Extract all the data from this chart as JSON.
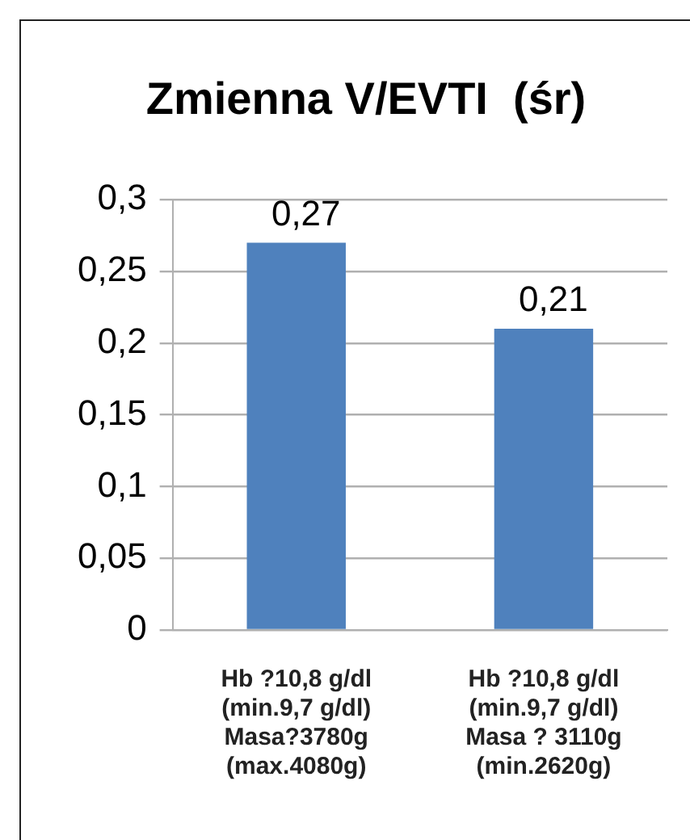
{
  "chart_data": {
    "type": "bar",
    "title": "Zmienna V/EVTI  (śr)",
    "categories": [
      "Hb ?10,8 g/dl\n(min.9,7 g/dl)\nMasa?3780g\n(max.4080g)",
      "Hb ?10,8 g/dl\n(min.9,7 g/dl)\nMasa ? 3110g\n(min.2620g)"
    ],
    "values": [
      0.27,
      0.21
    ],
    "color": "#4f81bd",
    "value_labels": [
      "0,27",
      "0,21"
    ],
    "ylim": [
      0,
      0.3
    ],
    "yticks": [
      0,
      {
        "value": 0.05,
        "label": "0,05"
      },
      {
        "value": 0.1,
        "label": "0,1"
      },
      {
        "value": 0.15,
        "label": "0,15"
      },
      {
        "value": 0.2,
        "label": "0,2"
      },
      {
        "value": 0.25,
        "label": "0,25"
      },
      {
        "value": 0.3,
        "label": "0,3"
      }
    ],
    "grid": "y"
  }
}
